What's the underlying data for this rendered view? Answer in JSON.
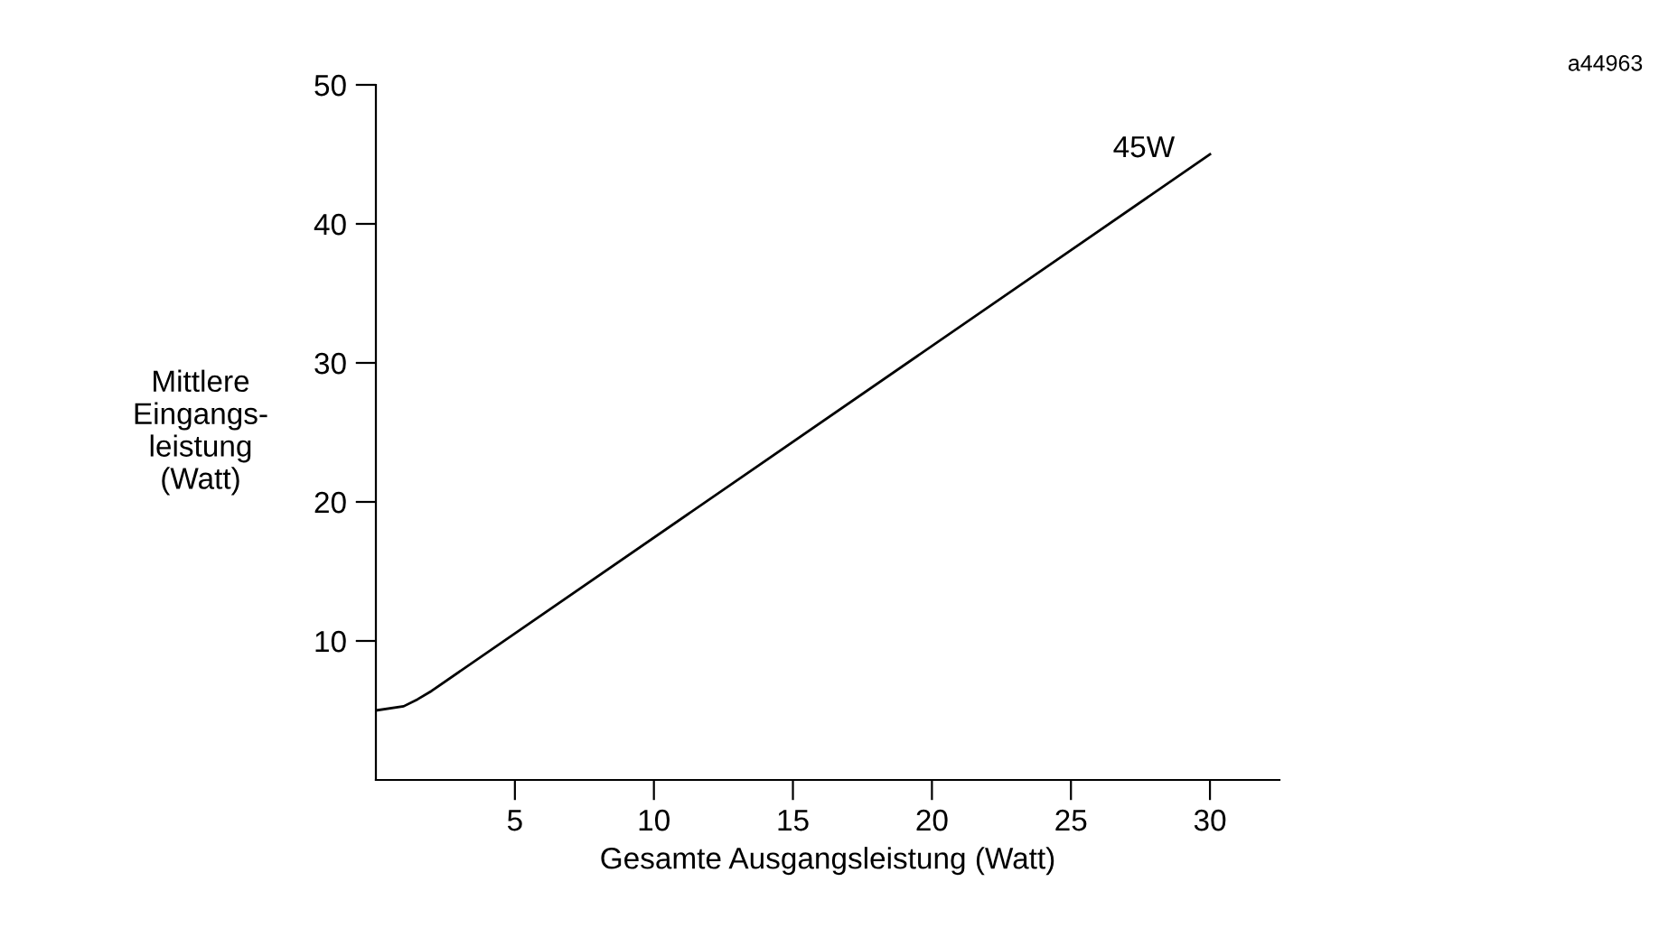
{
  "chart_data": {
    "type": "line",
    "xlabel": "Gesamte Ausgangsleistung (Watt)",
    "ylabel": "Mittlere\nEingangs-\nleistung\n(Watt)",
    "x": [
      0,
      1,
      1.5,
      2,
      30
    ],
    "series": [
      {
        "color": "#000000",
        "values": [
          5,
          5.3,
          5.8,
          6.4,
          45
        ]
      }
    ],
    "xlim": [
      0,
      32.5
    ],
    "ylim": [
      0,
      50
    ],
    "xticks": [
      5,
      10,
      15,
      20,
      25,
      30
    ],
    "yticks": [
      10,
      20,
      30,
      40,
      50
    ],
    "grid": false,
    "legend": false,
    "marker": "none",
    "line_style": "solid",
    "annotations": [
      {
        "text": "45W",
        "x": 30,
        "y": 45
      },
      "a44963"
    ]
  }
}
